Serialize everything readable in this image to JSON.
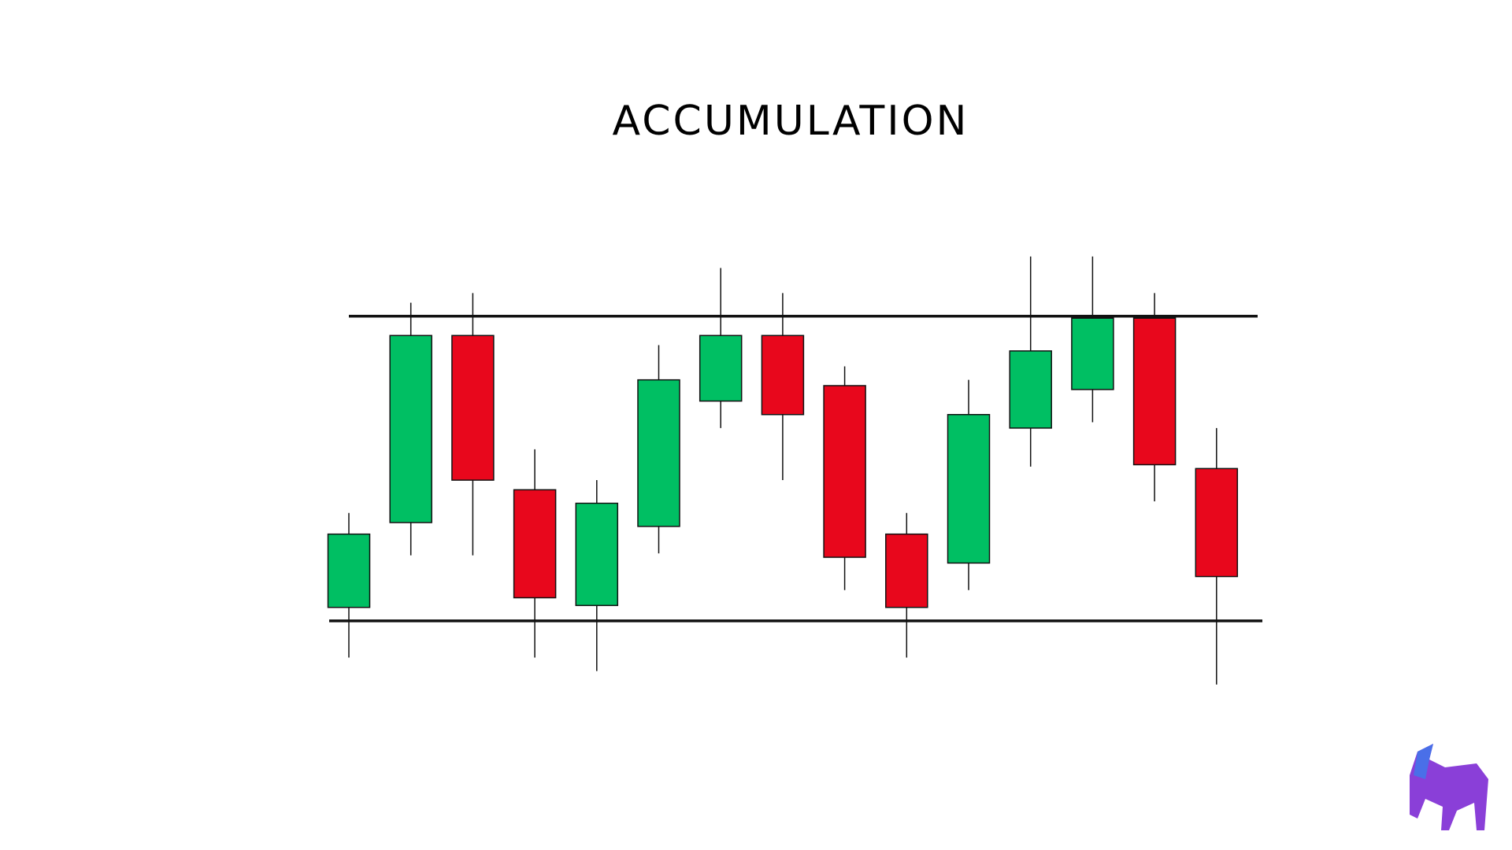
{
  "chart_data": {
    "type": "candlestick",
    "title": "ACCUMULATION",
    "open": [
      22.5,
      44.5,
      93,
      53,
      23,
      43.5,
      76,
      93,
      80,
      41.5,
      34,
      69,
      79,
      97.5,
      58.5
    ],
    "high": [
      47,
      101.5,
      104,
      63.5,
      55.5,
      90.5,
      110.5,
      104,
      85,
      47,
      81.5,
      113.5,
      113.5,
      104,
      69
    ],
    "low": [
      9.5,
      36,
      36,
      9.5,
      6,
      36.5,
      69,
      55.5,
      27,
      9.5,
      27,
      59,
      70.5,
      50,
      2.5
    ],
    "close": [
      41.5,
      93,
      55.5,
      25,
      49.5,
      81.5,
      93,
      72.5,
      35.5,
      22.5,
      72.5,
      89,
      97.5,
      59.5,
      30.5
    ],
    "up_color": "#00bf63",
    "down_color": "#e8071c",
    "levels": [
      98,
      19
    ],
    "ylim": [
      0,
      120
    ]
  }
}
